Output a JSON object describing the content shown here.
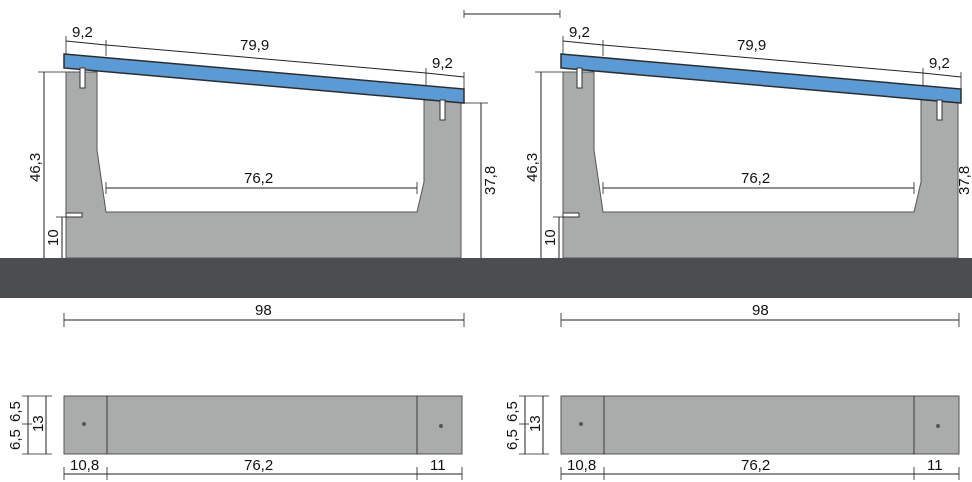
{
  "colors": {
    "ground": "#4c4d51",
    "block": "#a9acab",
    "block_stroke": "#555555",
    "panel": "#5b9bd5",
    "panel_stroke": "#2d2d2d"
  },
  "left": {
    "panel_edge_left": "9,2",
    "panel_length": "79,9",
    "panel_edge_right": "9,2",
    "height_left": "46,3",
    "height_right": "37,8",
    "inner_width": "76,2",
    "base_height": "10",
    "total_width": "98",
    "plan_h1": "6,5",
    "plan_h2": "6,5",
    "plan_height": "13",
    "plan_w_left": "10,8",
    "plan_w_mid": "76,2",
    "plan_w_right": "11"
  },
  "right": {
    "panel_edge_left": "9,2",
    "panel_length": "79,9",
    "panel_edge_right": "9,2",
    "height_left": "46,3",
    "height_right": "37,8",
    "inner_width": "76,2",
    "base_height": "10",
    "total_width": "98",
    "plan_h1": "6,5",
    "plan_h2": "6,5",
    "plan_height": "13",
    "plan_w_left": "10,8",
    "plan_w_mid": "76,2",
    "plan_w_right": "11"
  }
}
